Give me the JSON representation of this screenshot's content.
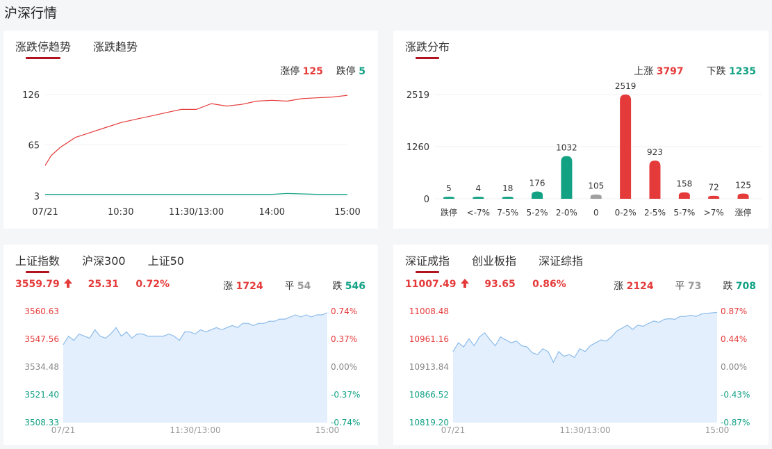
{
  "page_title": "沪深行情",
  "colors": {
    "up": "#e53a3a",
    "down": "#13a184",
    "flat": "#a0a0a0",
    "area_fill": "#e3effd",
    "area_line": "#8cbcea",
    "accent": "#b0141f"
  },
  "trend_card": {
    "tabs": [
      {
        "label": "涨跌停趋势",
        "active": true
      },
      {
        "label": "涨跌趋势",
        "active": false
      }
    ],
    "legend": {
      "limit_up_label": "涨停",
      "limit_up_value": "125",
      "limit_down_label": "跌停",
      "limit_down_value": "5"
    },
    "chart_data": {
      "type": "line",
      "x_ticks": [
        "07/21",
        "10:30",
        "11:30/13:00",
        "14:00",
        "15:00"
      ],
      "y_ticks": [
        "126",
        "65",
        "3"
      ],
      "ylim": [
        3,
        126
      ],
      "series": [
        {
          "name": "涨停",
          "color": "#e53a3a",
          "x": [
            0,
            0.02,
            0.05,
            0.1,
            0.15,
            0.2,
            0.25,
            0.3,
            0.35,
            0.4,
            0.45,
            0.5,
            0.55,
            0.6,
            0.65,
            0.7,
            0.75,
            0.8,
            0.85,
            0.9,
            0.95,
            1.0
          ],
          "values": [
            40,
            52,
            62,
            74,
            80,
            86,
            92,
            96,
            100,
            104,
            108,
            108,
            115,
            112,
            114,
            118,
            119,
            118,
            121,
            122,
            123,
            125
          ]
        },
        {
          "name": "跌停",
          "color": "#13a184",
          "x": [
            0,
            0.2,
            0.4,
            0.6,
            0.75,
            0.8,
            0.9,
            1.0
          ],
          "values": [
            5,
            5,
            5,
            5,
            5,
            6,
            5,
            5
          ]
        }
      ]
    }
  },
  "dist_card": {
    "tabs": [
      {
        "label": "涨跌分布",
        "active": true
      }
    ],
    "legend": {
      "up_label": "上涨",
      "up_value": "3797",
      "down_label": "下跌",
      "down_value": "1235"
    },
    "chart_data": {
      "type": "bar",
      "categories": [
        "跌停",
        "<-7%",
        "7-5%",
        "5-2%",
        "2-0%",
        "0",
        "0-2%",
        "2-5%",
        "5-7%",
        ">7%",
        "涨停"
      ],
      "values": [
        5,
        4,
        18,
        176,
        1032,
        105,
        2519,
        923,
        158,
        72,
        125
      ],
      "bar_colors": [
        "down",
        "down",
        "down",
        "down",
        "down",
        "flat",
        "up",
        "up",
        "up",
        "up",
        "up"
      ],
      "y_ticks": [
        "2519",
        "1260",
        "0"
      ],
      "ylim": [
        0,
        2519
      ]
    }
  },
  "sh_card": {
    "tabs": [
      {
        "label": "上证指数",
        "active": true
      },
      {
        "label": "沪深300",
        "active": false
      },
      {
        "label": "上证50",
        "active": false
      }
    ],
    "price": "3559.79",
    "change": "25.31",
    "pct": "0.72%",
    "up_label": "涨",
    "up_count": "1724",
    "flat_label": "平",
    "flat_count": "54",
    "down_label": "跌",
    "down_count": "546",
    "chart_data": {
      "type": "area",
      "y_left_ticks": [
        "3560.63",
        "3547.56",
        "3534.48",
        "3521.40",
        "3508.33"
      ],
      "y_right_ticks": [
        "0.74%",
        "0.37%",
        "0.00%",
        "-0.37%",
        "-0.74%"
      ],
      "x_ticks": [
        "07/21",
        "11:30/13:00",
        "15:00"
      ],
      "ylim": [
        3508.33,
        3560.63
      ],
      "x": [
        0,
        0.02,
        0.04,
        0.06,
        0.08,
        0.1,
        0.12,
        0.14,
        0.16,
        0.18,
        0.2,
        0.22,
        0.24,
        0.26,
        0.28,
        0.3,
        0.32,
        0.34,
        0.36,
        0.38,
        0.4,
        0.42,
        0.44,
        0.46,
        0.48,
        0.5,
        0.52,
        0.54,
        0.56,
        0.58,
        0.6,
        0.62,
        0.64,
        0.66,
        0.68,
        0.7,
        0.72,
        0.74,
        0.76,
        0.78,
        0.8,
        0.82,
        0.84,
        0.86,
        0.88,
        0.9,
        0.92,
        0.94,
        0.96,
        0.98,
        1.0
      ],
      "values": [
        3545,
        3549,
        3547,
        3550,
        3549,
        3548,
        3552,
        3549,
        3548,
        3550,
        3553,
        3549,
        3551,
        3548,
        3550,
        3550,
        3549,
        3549,
        3549,
        3549,
        3550,
        3549,
        3547,
        3551,
        3551,
        3550,
        3552,
        3551,
        3552,
        3553,
        3552,
        3553,
        3554,
        3553,
        3555,
        3555,
        3554,
        3555,
        3555,
        3556,
        3556,
        3557,
        3557,
        3558,
        3559,
        3558,
        3559,
        3558,
        3559,
        3559,
        3560
      ]
    }
  },
  "sz_card": {
    "tabs": [
      {
        "label": "深证成指",
        "active": true
      },
      {
        "label": "创业板指",
        "active": false
      },
      {
        "label": "深证综指",
        "active": false
      }
    ],
    "price": "11007.49",
    "change": "93.65",
    "pct": "0.86%",
    "up_label": "涨",
    "up_count": "2124",
    "flat_label": "平",
    "flat_count": "73",
    "down_label": "跌",
    "down_count": "708",
    "chart_data": {
      "type": "area",
      "y_left_ticks": [
        "11008.48",
        "10961.16",
        "10913.84",
        "10866.52",
        "10819.20"
      ],
      "y_right_ticks": [
        "0.87%",
        "0.44%",
        "0.00%",
        "-0.43%",
        "-0.87%"
      ],
      "x_ticks": [
        "07/21",
        "11:30/13:00",
        "15:00"
      ],
      "ylim": [
        10819.2,
        11008.48
      ],
      "x": [
        0,
        0.02,
        0.04,
        0.06,
        0.08,
        0.1,
        0.12,
        0.14,
        0.16,
        0.18,
        0.2,
        0.22,
        0.24,
        0.26,
        0.28,
        0.3,
        0.32,
        0.34,
        0.36,
        0.38,
        0.4,
        0.42,
        0.44,
        0.46,
        0.48,
        0.5,
        0.52,
        0.54,
        0.56,
        0.58,
        0.6,
        0.62,
        0.64,
        0.66,
        0.68,
        0.7,
        0.72,
        0.74,
        0.76,
        0.78,
        0.8,
        0.82,
        0.84,
        0.86,
        0.88,
        0.9,
        0.92,
        0.94,
        0.96,
        0.98,
        1.0
      ],
      "values": [
        10940,
        10955,
        10948,
        10962,
        10950,
        10965,
        10972,
        10960,
        10950,
        10965,
        10960,
        10955,
        10958,
        10950,
        10948,
        10938,
        10935,
        10945,
        10940,
        10922,
        10940,
        10932,
        10935,
        10930,
        10945,
        10940,
        10950,
        10955,
        10960,
        10958,
        10965,
        10975,
        10980,
        10985,
        10978,
        10985,
        10983,
        10988,
        10992,
        10990,
        10995,
        10996,
        10995,
        11000,
        11000,
        11002,
        11000,
        11004,
        11005,
        11006,
        11007
      ]
    }
  }
}
